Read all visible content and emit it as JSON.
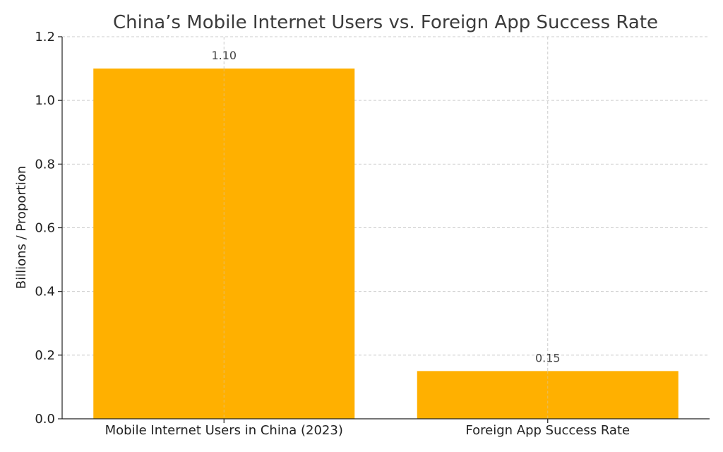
{
  "chart_data": {
    "type": "bar",
    "title": "China’s Mobile Internet Users vs. Foreign App Success Rate",
    "xlabel": "",
    "ylabel": "Billions / Proportion",
    "categories": [
      "Mobile Internet Users in China (2023)",
      "Foreign App Success Rate"
    ],
    "values": [
      1.1,
      0.15
    ],
    "data_labels": [
      "1.10",
      "0.15"
    ],
    "ylim": [
      0,
      1.2
    ],
    "yticks": [
      0.0,
      0.2,
      0.4,
      0.6,
      0.8,
      1.0,
      1.2
    ],
    "ytick_labels": [
      "0.0",
      "0.2",
      "0.4",
      "0.6",
      "0.8",
      "1.0",
      "1.2"
    ],
    "grid": true,
    "bar_color": "#FFB000"
  }
}
